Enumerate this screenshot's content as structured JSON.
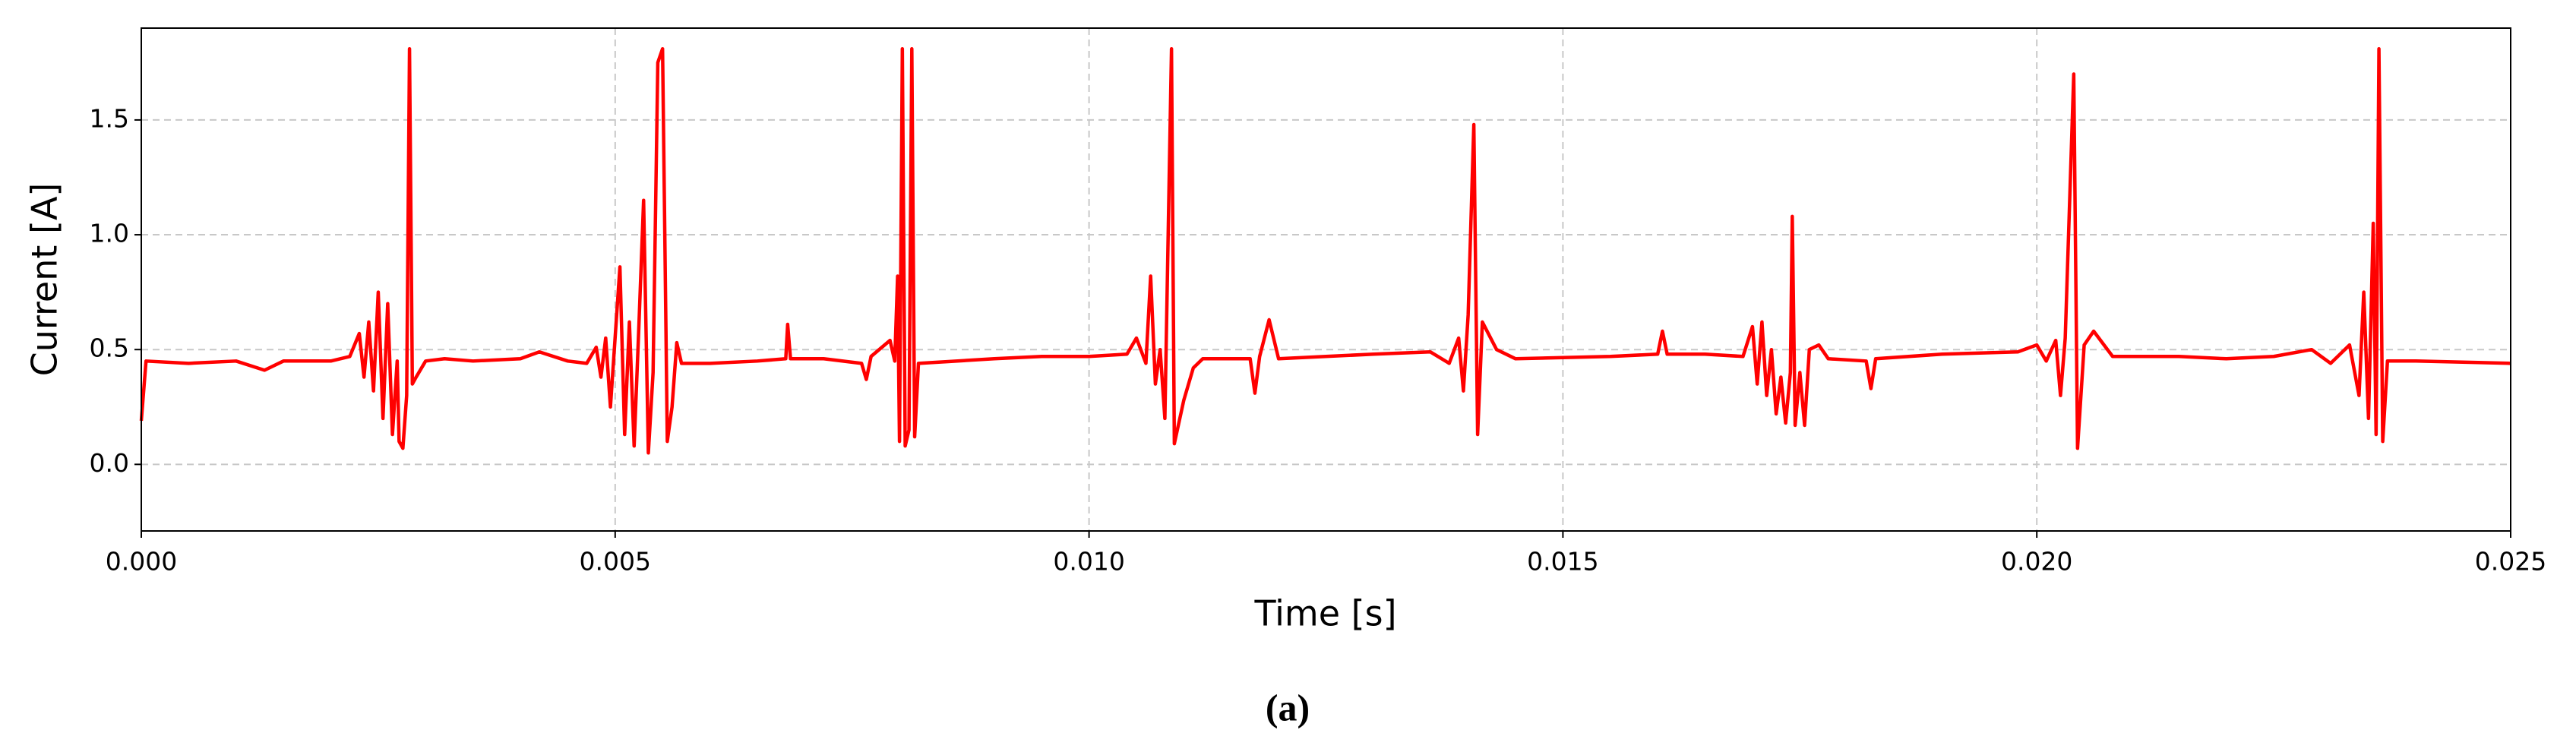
{
  "chart_data": {
    "type": "line",
    "caption": "(a)",
    "xlabel": "Time [s]",
    "ylabel": "Current [A]",
    "color": "#ff0000",
    "grid": true,
    "xlim": [
      0,
      0.025
    ],
    "ylim": [
      -0.29,
      1.9
    ],
    "xticks": [
      {
        "value": 0,
        "label": "0.000"
      },
      {
        "value": 0.005,
        "label": "0.005"
      },
      {
        "value": 0.01,
        "label": "0.010"
      },
      {
        "value": 0.015,
        "label": "0.015"
      },
      {
        "value": 0.02,
        "label": "0.020"
      },
      {
        "value": 0.025,
        "label": "0.025"
      }
    ],
    "yticks": [
      {
        "value": 0,
        "label": "0.0"
      },
      {
        "value": 0.5,
        "label": "0.5"
      },
      {
        "value": 1,
        "label": "1.0"
      },
      {
        "value": 1.5,
        "label": "1.5"
      }
    ],
    "x": [
      0,
      5e-05,
      0.0005,
      0.001,
      0.0013,
      0.0015,
      0.002,
      0.0022,
      0.0023,
      0.00235,
      0.0024,
      0.00245,
      0.0025,
      0.00255,
      0.0026,
      0.00265,
      0.0027,
      0.00272,
      0.00276,
      0.0028,
      0.00283,
      0.00286,
      0.0029,
      0.003,
      0.0032,
      0.0035,
      0.004,
      0.0042,
      0.0045,
      0.0047,
      0.0048,
      0.00485,
      0.0049,
      0.00495,
      0.00505,
      0.0051,
      0.00515,
      0.0052,
      0.00525,
      0.0053,
      0.00535,
      0.0054,
      0.00545,
      0.0055,
      0.00555,
      0.0056,
      0.00565,
      0.0057,
      0.006,
      0.0065,
      0.0068,
      0.00682,
      0.00685,
      0.0072,
      0.0076,
      0.00765,
      0.0077,
      0.0079,
      0.00795,
      0.00798,
      0.008,
      0.00803,
      0.00806,
      0.0081,
      0.00813,
      0.00816,
      0.0082,
      0.009,
      0.0095,
      0.01,
      0.0104,
      0.0105,
      0.0106,
      0.01065,
      0.0107,
      0.01075,
      0.0108,
      0.01087,
      0.0109,
      0.011,
      0.0111,
      0.0112,
      0.0117,
      0.01175,
      0.0118,
      0.0119,
      0.012,
      0.013,
      0.0136,
      0.0138,
      0.0139,
      0.01395,
      0.014,
      0.01406,
      0.0141,
      0.01415,
      0.0143,
      0.0145,
      0.0155,
      0.016,
      0.01605,
      0.0161,
      0.0165,
      0.0169,
      0.017,
      0.01705,
      0.0171,
      0.01715,
      0.0172,
      0.01725,
      0.0173,
      0.01735,
      0.0174,
      0.01742,
      0.01745,
      0.0175,
      0.01755,
      0.0176,
      0.0177,
      0.0178,
      0.0182,
      0.01825,
      0.0183,
      0.019,
      0.0198,
      0.02,
      0.0201,
      0.0202,
      0.02025,
      0.0203,
      0.02039,
      0.02043,
      0.0205,
      0.0206,
      0.0208,
      0.0215,
      0.022,
      0.0225,
      0.0229,
      0.0231,
      0.0233,
      0.0234,
      0.02345,
      0.0235,
      0.02355,
      0.02358,
      0.02361,
      0.02365,
      0.0237,
      0.024,
      0.025
    ],
    "values": [
      0.19,
      0.45,
      0.44,
      0.45,
      0.41,
      0.45,
      0.45,
      0.47,
      0.57,
      0.38,
      0.62,
      0.32,
      0.75,
      0.2,
      0.7,
      0.13,
      0.45,
      0.1,
      0.07,
      0.3,
      1.81,
      0.35,
      0.38,
      0.45,
      0.46,
      0.45,
      0.46,
      0.49,
      0.45,
      0.44,
      0.51,
      0.38,
      0.55,
      0.25,
      0.86,
      0.13,
      0.62,
      0.08,
      0.6,
      1.15,
      0.05,
      0.4,
      1.75,
      1.81,
      0.1,
      0.25,
      0.53,
      0.44,
      0.44,
      0.45,
      0.46,
      0.61,
      0.46,
      0.46,
      0.44,
      0.37,
      0.47,
      0.54,
      0.45,
      0.82,
      0.1,
      1.81,
      0.08,
      0.15,
      1.81,
      0.12,
      0.44,
      0.46,
      0.47,
      0.47,
      0.48,
      0.55,
      0.44,
      0.82,
      0.35,
      0.5,
      0.2,
      1.81,
      0.09,
      0.28,
      0.42,
      0.46,
      0.46,
      0.31,
      0.47,
      0.63,
      0.46,
      0.48,
      0.49,
      0.44,
      0.55,
      0.32,
      0.65,
      1.48,
      0.13,
      0.62,
      0.5,
      0.46,
      0.47,
      0.48,
      0.58,
      0.48,
      0.48,
      0.47,
      0.6,
      0.35,
      0.62,
      0.3,
      0.5,
      0.22,
      0.38,
      0.18,
      0.4,
      1.08,
      0.17,
      0.4,
      0.17,
      0.5,
      0.52,
      0.46,
      0.45,
      0.33,
      0.46,
      0.48,
      0.49,
      0.52,
      0.45,
      0.54,
      0.3,
      0.55,
      1.7,
      0.07,
      0.52,
      0.58,
      0.47,
      0.47,
      0.46,
      0.47,
      0.5,
      0.44,
      0.52,
      0.3,
      0.75,
      0.2,
      1.05,
      0.13,
      1.81,
      0.1,
      0.45,
      0.45,
      0.44
    ]
  }
}
